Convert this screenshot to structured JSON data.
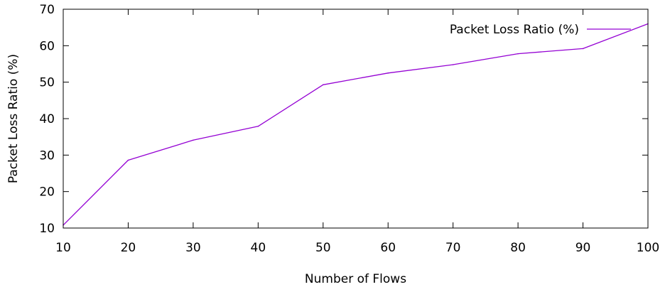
{
  "chart_data": {
    "type": "line",
    "title": "",
    "xlabel": "Number of Flows",
    "ylabel": "Packet Loss Ratio (%)",
    "xlim": [
      10,
      100
    ],
    "ylim": [
      10,
      70
    ],
    "xticks": [
      10,
      20,
      30,
      40,
      50,
      60,
      70,
      80,
      90,
      100
    ],
    "yticks": [
      10,
      20,
      30,
      40,
      50,
      60,
      70
    ],
    "grid": false,
    "legend_position": "top-right",
    "x": [
      10,
      20,
      30,
      40,
      50,
      60,
      70,
      80,
      90,
      100
    ],
    "series": [
      {
        "name": "Packet Loss Ratio (%)",
        "color": "#9400d3",
        "values": [
          10.8,
          28.6,
          34.1,
          37.9,
          49.3,
          52.5,
          54.8,
          57.8,
          59.2,
          66.0
        ]
      }
    ]
  }
}
